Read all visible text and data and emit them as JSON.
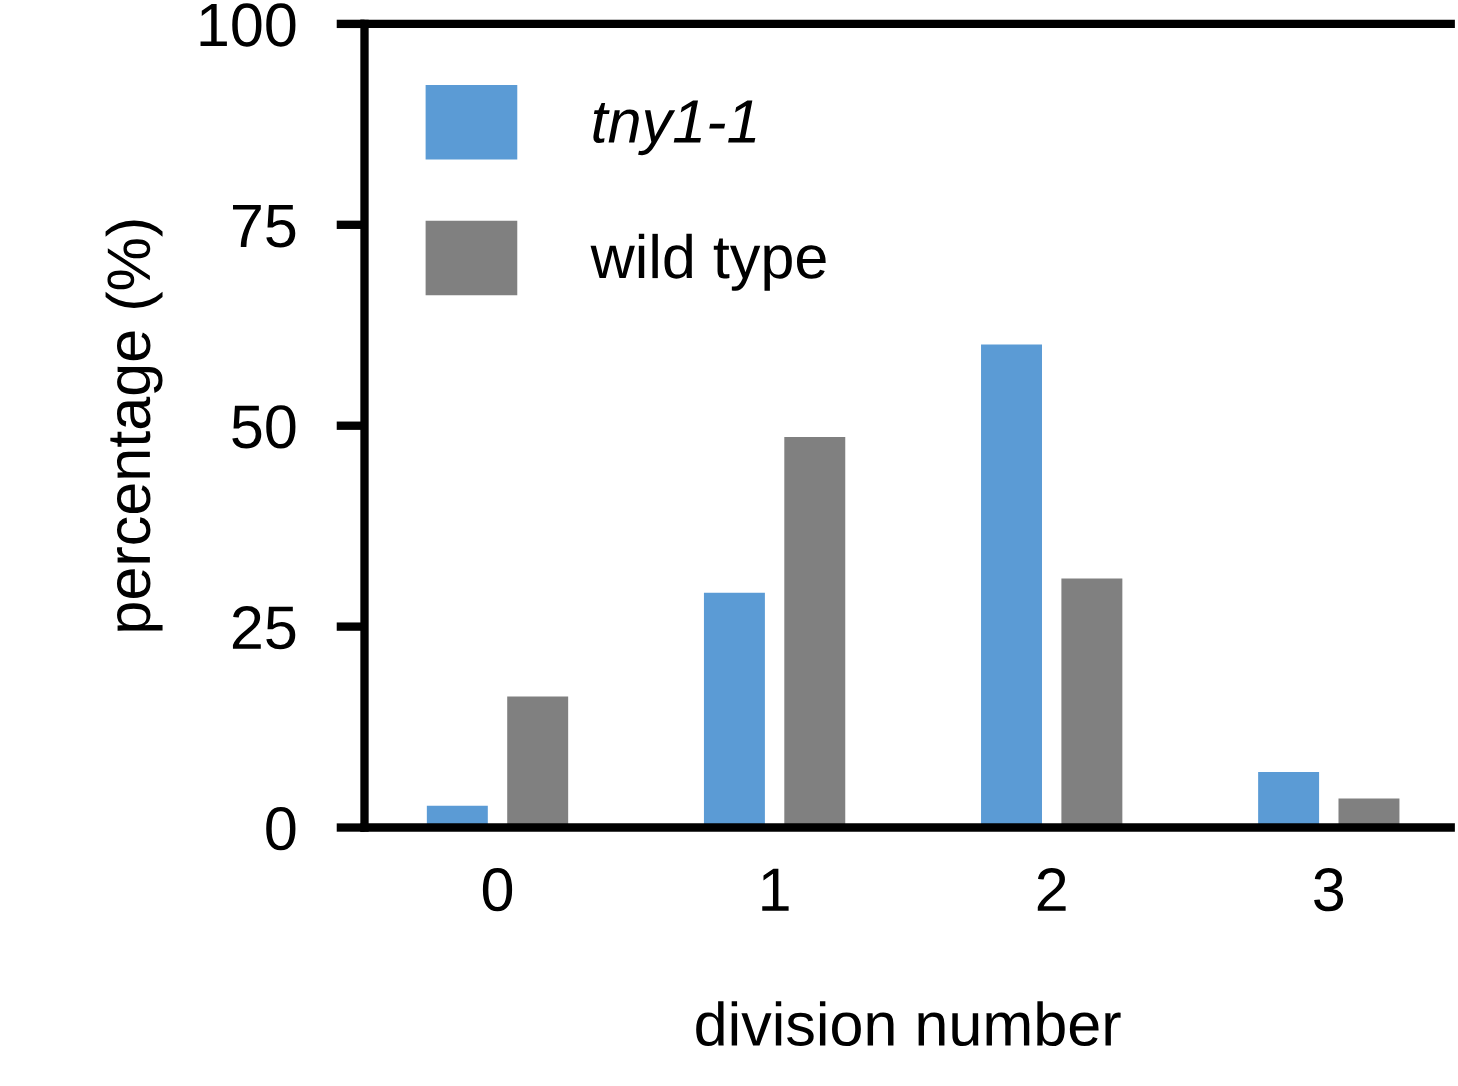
{
  "chart_data": {
    "type": "bar",
    "xlabel": "division number",
    "ylabel": "percentage (%)",
    "categories": [
      "0",
      "1",
      "2",
      "3"
    ],
    "series": [
      {
        "name": "tny1-1",
        "color": "#5b9bd5",
        "values": [
          2.7,
          29.2,
          60.1,
          6.9
        ]
      },
      {
        "name": "wild type",
        "color": "#808080",
        "values": [
          16.3,
          48.6,
          31.0,
          3.6
        ]
      }
    ],
    "ylim": [
      0,
      100
    ],
    "yticks": [
      0,
      25,
      50,
      75,
      100
    ],
    "grid": false,
    "legend": "top left"
  }
}
